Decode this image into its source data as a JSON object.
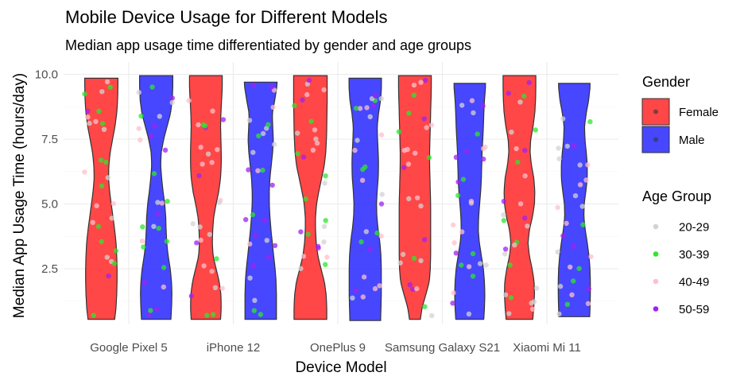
{
  "chart_data": {
    "type": "violin",
    "title": "Mobile Device Usage for Different Models",
    "subtitle": "Median app usage time differentiated by gender and age groups",
    "xlabel": "Device Model",
    "ylabel": "Median App Usage Time (hours/day)",
    "categories": [
      "Google Pixel 5",
      "iPhone 12",
      "OnePlus 9",
      "Samsung Galaxy S21",
      "Xiaomi Mi 11"
    ],
    "yticks": [
      "2.5",
      "5.0",
      "7.5",
      "10.0"
    ],
    "ylim": [
      0.3,
      10.3
    ],
    "grid": true,
    "legend_position": "right",
    "legends": [
      {
        "title": "Gender",
        "entries": [
          {
            "label": "Female",
            "color": "#ff2e2e"
          },
          {
            "label": "Male",
            "color": "#2e2eff"
          }
        ]
      },
      {
        "title": "Age Group",
        "entries": [
          {
            "label": "20-29",
            "color": "#d3d3d3"
          },
          {
            "label": "30-39",
            "color": "#2ee62e"
          },
          {
            "label": "40-49",
            "color": "#ffc0cb"
          },
          {
            "label": "50-59",
            "color": "#a020f0"
          }
        ]
      }
    ],
    "series": [
      {
        "name": "Female",
        "color": "#ff2e2e",
        "violins": [
          {
            "category": "Google Pixel 5",
            "min": 0.55,
            "max": 9.85,
            "profile": [
              [
                0.55,
                0.78
              ],
              [
                1.0,
                0.86
              ],
              [
                1.5,
                0.9
              ],
              [
                2.0,
                0.92
              ],
              [
                2.5,
                0.92
              ],
              [
                3.0,
                0.9
              ],
              [
                3.5,
                0.86
              ],
              [
                4.0,
                0.78
              ],
              [
                4.5,
                0.68
              ],
              [
                5.0,
                0.58
              ],
              [
                5.5,
                0.48
              ],
              [
                6.0,
                0.42
              ],
              [
                6.5,
                0.44
              ],
              [
                7.0,
                0.52
              ],
              [
                7.5,
                0.66
              ],
              [
                8.0,
                0.8
              ],
              [
                8.5,
                0.9
              ],
              [
                9.0,
                0.95
              ],
              [
                9.5,
                0.97
              ],
              [
                9.85,
                0.97
              ]
            ]
          },
          {
            "category": "iPhone 12",
            "min": 0.55,
            "max": 9.95,
            "profile": [
              [
                0.55,
                0.86
              ],
              [
                1.0,
                0.9
              ],
              [
                1.5,
                0.88
              ],
              [
                2.0,
                0.78
              ],
              [
                2.5,
                0.6
              ],
              [
                3.0,
                0.42
              ],
              [
                3.5,
                0.38
              ],
              [
                4.0,
                0.4
              ],
              [
                4.5,
                0.46
              ],
              [
                5.0,
                0.6
              ],
              [
                5.5,
                0.76
              ],
              [
                6.0,
                0.86
              ],
              [
                6.5,
                0.9
              ],
              [
                7.0,
                0.9
              ],
              [
                7.5,
                0.88
              ],
              [
                8.0,
                0.86
              ],
              [
                8.5,
                0.88
              ],
              [
                9.0,
                0.92
              ],
              [
                9.5,
                0.96
              ],
              [
                9.95,
                0.96
              ]
            ]
          },
          {
            "category": "OnePlus 9",
            "min": 0.55,
            "max": 9.95,
            "profile": [
              [
                0.55,
                0.96
              ],
              [
                1.0,
                0.96
              ],
              [
                1.5,
                0.92
              ],
              [
                2.0,
                0.82
              ],
              [
                2.5,
                0.62
              ],
              [
                3.0,
                0.44
              ],
              [
                3.5,
                0.34
              ],
              [
                4.0,
                0.3
              ],
              [
                4.5,
                0.3
              ],
              [
                5.0,
                0.36
              ],
              [
                5.5,
                0.5
              ],
              [
                6.0,
                0.66
              ],
              [
                6.5,
                0.82
              ],
              [
                7.0,
                0.9
              ],
              [
                7.5,
                0.94
              ],
              [
                8.0,
                0.96
              ],
              [
                8.5,
                0.97
              ],
              [
                9.0,
                0.98
              ],
              [
                9.5,
                0.98
              ],
              [
                9.95,
                0.98
              ]
            ]
          },
          {
            "category": "Samsung Galaxy S21",
            "min": 0.55,
            "max": 9.95,
            "profile": [
              [
                0.55,
                0.32
              ],
              [
                1.0,
                0.42
              ],
              [
                1.5,
                0.64
              ],
              [
                2.0,
                0.84
              ],
              [
                2.5,
                0.9
              ],
              [
                3.0,
                0.92
              ],
              [
                3.5,
                0.92
              ],
              [
                4.0,
                0.92
              ],
              [
                4.5,
                0.92
              ],
              [
                5.0,
                0.92
              ],
              [
                5.5,
                0.9
              ],
              [
                6.0,
                0.88
              ],
              [
                6.5,
                0.86
              ],
              [
                7.0,
                0.86
              ],
              [
                7.5,
                0.88
              ],
              [
                8.0,
                0.9
              ],
              [
                8.5,
                0.92
              ],
              [
                9.0,
                0.94
              ],
              [
                9.5,
                0.96
              ],
              [
                9.95,
                0.96
              ]
            ]
          },
          {
            "category": "Xiaomi Mi 11",
            "min": 0.55,
            "max": 9.95,
            "profile": [
              [
                0.55,
                0.78
              ],
              [
                1.0,
                0.84
              ],
              [
                1.5,
                0.88
              ],
              [
                2.0,
                0.86
              ],
              [
                2.5,
                0.74
              ],
              [
                3.0,
                0.58
              ],
              [
                3.5,
                0.5
              ],
              [
                4.0,
                0.58
              ],
              [
                4.5,
                0.76
              ],
              [
                5.0,
                0.88
              ],
              [
                5.5,
                0.9
              ],
              [
                6.0,
                0.84
              ],
              [
                6.5,
                0.7
              ],
              [
                7.0,
                0.62
              ],
              [
                7.5,
                0.66
              ],
              [
                8.0,
                0.8
              ],
              [
                8.5,
                0.9
              ],
              [
                9.0,
                0.94
              ],
              [
                9.5,
                0.96
              ],
              [
                9.95,
                0.96
              ]
            ]
          }
        ]
      },
      {
        "name": "Male",
        "color": "#2e2eff",
        "violins": [
          {
            "category": "Google Pixel 5",
            "min": 0.55,
            "max": 9.95,
            "profile": [
              [
                0.55,
                0.86
              ],
              [
                1.0,
                0.9
              ],
              [
                1.5,
                0.92
              ],
              [
                2.0,
                0.9
              ],
              [
                2.5,
                0.82
              ],
              [
                3.0,
                0.7
              ],
              [
                3.5,
                0.62
              ],
              [
                4.0,
                0.58
              ],
              [
                4.5,
                0.56
              ],
              [
                5.0,
                0.5
              ],
              [
                5.5,
                0.4
              ],
              [
                6.0,
                0.32
              ],
              [
                6.5,
                0.26
              ],
              [
                7.0,
                0.3
              ],
              [
                7.5,
                0.44
              ],
              [
                8.0,
                0.64
              ],
              [
                8.5,
                0.84
              ],
              [
                9.0,
                0.94
              ],
              [
                9.5,
                0.97
              ],
              [
                9.95,
                0.97
              ]
            ]
          },
          {
            "category": "iPhone 12",
            "min": 0.55,
            "max": 9.7,
            "profile": [
              [
                0.55,
                0.92
              ],
              [
                1.0,
                0.92
              ],
              [
                1.5,
                0.92
              ],
              [
                2.0,
                0.9
              ],
              [
                2.5,
                0.84
              ],
              [
                3.0,
                0.76
              ],
              [
                3.5,
                0.68
              ],
              [
                4.0,
                0.6
              ],
              [
                4.5,
                0.54
              ],
              [
                5.0,
                0.5
              ],
              [
                5.5,
                0.5
              ],
              [
                6.0,
                0.54
              ],
              [
                6.5,
                0.62
              ],
              [
                7.0,
                0.7
              ],
              [
                7.5,
                0.74
              ],
              [
                8.0,
                0.7
              ],
              [
                8.5,
                0.68
              ],
              [
                9.0,
                0.82
              ],
              [
                9.5,
                0.94
              ],
              [
                9.7,
                0.96
              ]
            ]
          },
          {
            "category": "OnePlus 9",
            "min": 0.5,
            "max": 9.85,
            "profile": [
              [
                0.5,
                0.9
              ],
              [
                1.0,
                0.92
              ],
              [
                1.5,
                0.94
              ],
              [
                2.0,
                0.94
              ],
              [
                2.5,
                0.94
              ],
              [
                3.0,
                0.92
              ],
              [
                3.5,
                0.86
              ],
              [
                4.0,
                0.76
              ],
              [
                4.5,
                0.68
              ],
              [
                5.0,
                0.66
              ],
              [
                5.5,
                0.7
              ],
              [
                6.0,
                0.76
              ],
              [
                6.5,
                0.78
              ],
              [
                7.0,
                0.76
              ],
              [
                7.5,
                0.72
              ],
              [
                8.0,
                0.7
              ],
              [
                8.5,
                0.78
              ],
              [
                9.0,
                0.9
              ],
              [
                9.5,
                0.95
              ],
              [
                9.85,
                0.95
              ]
            ]
          },
          {
            "category": "Samsung Galaxy S21",
            "min": 0.55,
            "max": 9.65,
            "profile": [
              [
                0.55,
                0.82
              ],
              [
                1.0,
                0.86
              ],
              [
                1.5,
                0.88
              ],
              [
                2.0,
                0.86
              ],
              [
                2.5,
                0.8
              ],
              [
                3.0,
                0.68
              ],
              [
                3.5,
                0.56
              ],
              [
                4.0,
                0.5
              ],
              [
                4.5,
                0.52
              ],
              [
                5.0,
                0.58
              ],
              [
                5.5,
                0.64
              ],
              [
                6.0,
                0.68
              ],
              [
                6.5,
                0.7
              ],
              [
                7.0,
                0.72
              ],
              [
                7.5,
                0.76
              ],
              [
                8.0,
                0.8
              ],
              [
                8.5,
                0.82
              ],
              [
                9.0,
                0.86
              ],
              [
                9.5,
                0.92
              ],
              [
                9.65,
                0.92
              ]
            ]
          },
          {
            "category": "Xiaomi Mi 11",
            "min": 0.65,
            "max": 9.65,
            "profile": [
              [
                0.65,
                0.9
              ],
              [
                1.0,
                0.92
              ],
              [
                1.5,
                0.94
              ],
              [
                2.0,
                0.94
              ],
              [
                2.5,
                0.92
              ],
              [
                3.0,
                0.86
              ],
              [
                3.5,
                0.76
              ],
              [
                4.0,
                0.64
              ],
              [
                4.5,
                0.56
              ],
              [
                5.0,
                0.58
              ],
              [
                5.5,
                0.68
              ],
              [
                6.0,
                0.76
              ],
              [
                6.5,
                0.76
              ],
              [
                7.0,
                0.7
              ],
              [
                7.5,
                0.62
              ],
              [
                8.0,
                0.6
              ],
              [
                8.5,
                0.7
              ],
              [
                9.0,
                0.84
              ],
              [
                9.5,
                0.92
              ],
              [
                9.65,
                0.92
              ]
            ]
          }
        ]
      }
    ],
    "points_per_group": 28,
    "age_groups": [
      "20-29",
      "30-39",
      "40-49",
      "50-59"
    ],
    "age_colors": [
      "#d3d3d3",
      "#2ee62e",
      "#ffc0cb",
      "#a020f0"
    ]
  }
}
